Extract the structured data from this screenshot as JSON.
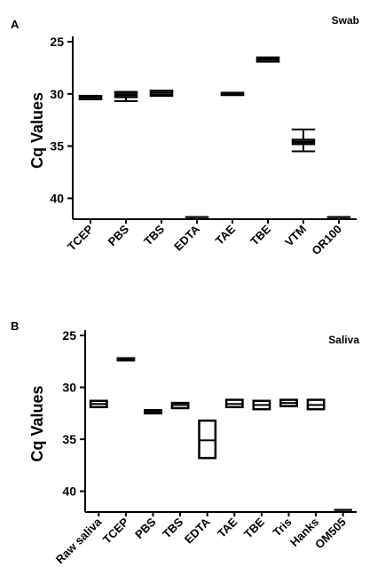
{
  "chart_data": [
    {
      "type": "box",
      "label": "A",
      "annotation": "Swab",
      "ylabel": "Cq Values",
      "categories": [
        "TCEP",
        "PBS",
        "TBS",
        "EDTA",
        "TAE",
        "TBE",
        "VTM",
        "OR100"
      ],
      "min": [
        30.2,
        29.8,
        29.7,
        41.8,
        29.9,
        26.5,
        33.4,
        41.8
      ],
      "q1": [
        30.2,
        29.9,
        29.7,
        41.8,
        29.9,
        26.6,
        34.4,
        41.8
      ],
      "median": [
        30.3,
        30.1,
        29.9,
        41.8,
        30.0,
        26.7,
        34.6,
        41.8
      ],
      "q3": [
        30.5,
        30.3,
        30.1,
        41.8,
        30.1,
        26.9,
        34.8,
        41.8
      ],
      "max": [
        30.5,
        30.7,
        30.2,
        41.8,
        30.1,
        26.9,
        35.5,
        41.8
      ],
      "color": "#000000",
      "ylim": [
        25,
        42
      ],
      "yticks": [
        25,
        30,
        35,
        40
      ],
      "invert_y": true
    },
    {
      "type": "box",
      "label": "B",
      "annotation": "Saliva",
      "ylabel": "Cq Values",
      "categories": [
        "Raw saliva",
        "TCEP",
        "PBS",
        "TBS",
        "EDTA",
        "TAE",
        "TBE",
        "Tris",
        "Hanks",
        "OM505"
      ],
      "min": [
        31.3,
        27.2,
        32.2,
        31.5,
        33.2,
        31.2,
        31.3,
        31.2,
        31.2,
        41.8
      ],
      "q1": [
        31.3,
        27.2,
        32.2,
        31.5,
        33.2,
        31.2,
        31.3,
        31.2,
        31.2,
        41.8
      ],
      "median": [
        31.6,
        27.3,
        32.3,
        31.7,
        35.1,
        31.6,
        31.7,
        31.5,
        31.7,
        41.8
      ],
      "q3": [
        31.9,
        27.4,
        32.5,
        32.0,
        36.8,
        31.9,
        32.1,
        31.8,
        32.1,
        41.8
      ],
      "max": [
        31.9,
        27.4,
        32.5,
        32.0,
        36.8,
        31.9,
        32.1,
        31.8,
        32.1,
        41.8
      ],
      "color": "#000000",
      "ylim": [
        25,
        42
      ],
      "yticks": [
        25,
        30,
        35,
        40
      ],
      "invert_y": true
    }
  ]
}
